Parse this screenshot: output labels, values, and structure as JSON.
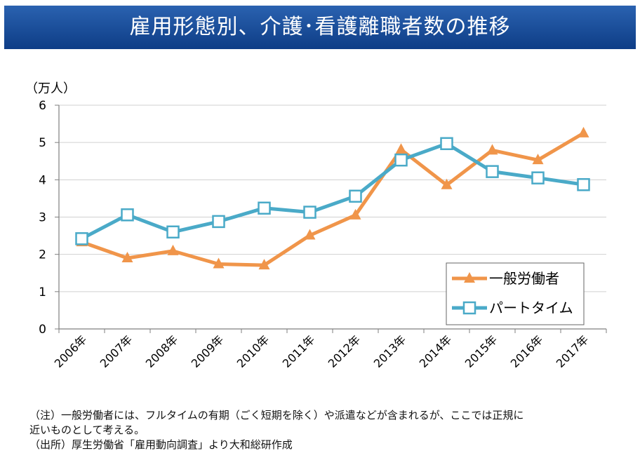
{
  "header": {
    "title": "雇用形態別、介護･看護離職者数の推移"
  },
  "chart_data": {
    "type": "line",
    "unit_label": "（万人）",
    "categories": [
      "2006年",
      "2007年",
      "2008年",
      "2009年",
      "2010年",
      "2011年",
      "2012年",
      "2013年",
      "2014年",
      "2015年",
      "2016年",
      "2017年"
    ],
    "ylim": [
      0,
      6
    ],
    "yticks": [
      0,
      1,
      2,
      3,
      4,
      5,
      6
    ],
    "grid": true,
    "legend_position": "bottom-right",
    "series": [
      {
        "name": "一般労働者",
        "color": "#f0954a",
        "marker": "triangle",
        "values": [
          2.33,
          1.9,
          2.09,
          1.74,
          1.71,
          2.51,
          3.05,
          4.81,
          3.86,
          4.79,
          4.53,
          5.25
        ]
      },
      {
        "name": "パートタイム",
        "color": "#4aaac8",
        "marker": "square",
        "values": [
          2.42,
          3.06,
          2.6,
          2.88,
          3.24,
          3.13,
          3.56,
          4.53,
          4.97,
          4.22,
          4.05,
          3.87
        ]
      }
    ]
  },
  "notes": {
    "line1": "（注）一般労働者には、フルタイムの有期（ごく短期を除く）や派遣などが含まれるが、ここでは正規に",
    "line2": "近いものとして考える。",
    "line3": "（出所）厚生労働省「雇用動向調査」より大和総研作成"
  }
}
